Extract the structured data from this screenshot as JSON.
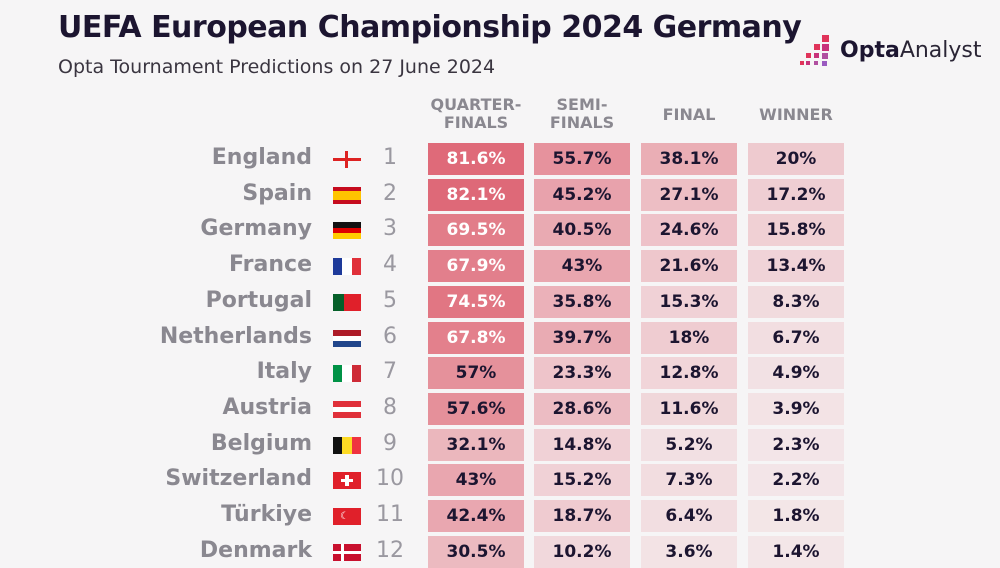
{
  "title": "UEFA European Championship 2024 Germany",
  "subtitle": "Opta Tournament Predictions on 27 June 2024",
  "logo": {
    "bold": "Opta",
    "light": "Analyst"
  },
  "colors": {
    "cell": "#dc5a6a",
    "text_dark": "#1c1530",
    "text_light": "#ffffff"
  },
  "chart_data": {
    "type": "table",
    "columns": [
      "QUARTER-\nFINALS",
      "SEMI-\nFINALS",
      "FINAL",
      "WINNER"
    ],
    "rows": [
      {
        "team": "England",
        "flag": "england-flag-icon",
        "rank": "1",
        "values": [
          "81.6%",
          "55.7%",
          "38.1%",
          "20%"
        ]
      },
      {
        "team": "Spain",
        "flag": "spain-flag-icon",
        "rank": "2",
        "values": [
          "82.1%",
          "45.2%",
          "27.1%",
          "17.2%"
        ]
      },
      {
        "team": "Germany",
        "flag": "germany-flag-icon",
        "rank": "3",
        "values": [
          "69.5%",
          "40.5%",
          "24.6%",
          "15.8%"
        ]
      },
      {
        "team": "France",
        "flag": "france-flag-icon",
        "rank": "4",
        "values": [
          "67.9%",
          "43%",
          "21.6%",
          "13.4%"
        ]
      },
      {
        "team": "Portugal",
        "flag": "portugal-flag-icon",
        "rank": "5",
        "values": [
          "74.5%",
          "35.8%",
          "15.3%",
          "8.3%"
        ]
      },
      {
        "team": "Netherlands",
        "flag": "netherlands-flag-icon",
        "rank": "6",
        "values": [
          "67.8%",
          "39.7%",
          "18%",
          "6.7%"
        ]
      },
      {
        "team": "Italy",
        "flag": "italy-flag-icon",
        "rank": "7",
        "values": [
          "57%",
          "23.3%",
          "12.8%",
          "4.9%"
        ]
      },
      {
        "team": "Austria",
        "flag": "austria-flag-icon",
        "rank": "8",
        "values": [
          "57.6%",
          "28.6%",
          "11.6%",
          "3.9%"
        ]
      },
      {
        "team": "Belgium",
        "flag": "belgium-flag-icon",
        "rank": "9",
        "values": [
          "32.1%",
          "14.8%",
          "5.2%",
          "2.3%"
        ]
      },
      {
        "team": "Switzerland",
        "flag": "switzerland-flag-icon",
        "rank": "10",
        "values": [
          "43%",
          "15.2%",
          "7.3%",
          "2.2%"
        ]
      },
      {
        "team": "Türkiye",
        "flag": "turkiye-flag-icon",
        "rank": "11",
        "values": [
          "42.4%",
          "18.7%",
          "6.4%",
          "1.8%"
        ]
      },
      {
        "team": "Denmark",
        "flag": "denmark-flag-icon",
        "rank": "12",
        "values": [
          "30.5%",
          "10.2%",
          "3.6%",
          "1.4%"
        ]
      }
    ]
  }
}
